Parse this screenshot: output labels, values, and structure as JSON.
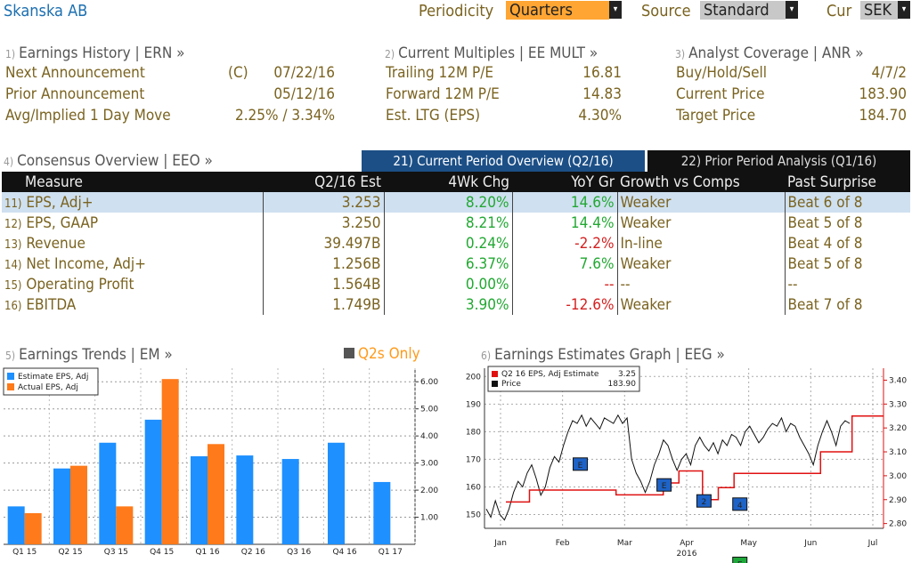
{
  "header": {
    "security": "Skanska AB",
    "periodicity_label": "Periodicity",
    "periodicity_value": "Quarters",
    "source_label": "Source",
    "source_value": "Standard",
    "currency_label": "Cur",
    "currency_value": "SEK"
  },
  "earnings_history": {
    "num": "1)",
    "title": "Earnings History | ERN »",
    "rows": [
      {
        "label": "Next Announcement",
        "flag": "(C)",
        "value": "07/22/16"
      },
      {
        "label": "Prior Announcement",
        "flag": "",
        "value": "05/12/16"
      },
      {
        "label": "Avg/Implied 1 Day Move",
        "flag": "",
        "value": "2.25% / 3.34%"
      }
    ]
  },
  "current_multiples": {
    "num": "2)",
    "title": "Current Multiples | EE MULT »",
    "rows": [
      {
        "label": "Trailing 12M P/E",
        "value": "16.81"
      },
      {
        "label": "Forward 12M P/E",
        "value": "14.83"
      },
      {
        "label": "Est. LTG (EPS)",
        "value": "4.30%"
      }
    ]
  },
  "analyst_coverage": {
    "num": "3)",
    "title": "Analyst Coverage | ANR »",
    "rows": [
      {
        "label": "Buy/Hold/Sell",
        "value": "4/7/2"
      },
      {
        "label": "Current Price",
        "value": "183.90"
      },
      {
        "label": "Target Price",
        "value": "184.70"
      }
    ]
  },
  "consensus": {
    "num": "4)",
    "title": "Consensus Overview | EEO »",
    "tab_current": "21) Current Period Overview (Q2/16)",
    "tab_prior": "22) Prior Period Analysis (Q1/16)",
    "columns": [
      "Measure",
      "Q2/16 Est",
      "4Wk Chg",
      "YoY Gr",
      "Growth vs Comps",
      "Past Surprise"
    ],
    "rows": [
      {
        "num": "11)",
        "measure": "EPS, Adj+",
        "est": "3.253",
        "chg": "8.20%",
        "yoy": "14.6%",
        "comps": "Weaker",
        "surprise": "Beat 6 of 8"
      },
      {
        "num": "12)",
        "measure": "EPS, GAAP",
        "est": "3.250",
        "chg": "8.21%",
        "yoy": "14.4%",
        "comps": "Weaker",
        "surprise": "Beat 5 of 8"
      },
      {
        "num": "13)",
        "measure": "Revenue",
        "est": "39.497B",
        "chg": "0.24%",
        "yoy": "-2.2%",
        "comps": "In-line",
        "surprise": "Beat 4 of 8"
      },
      {
        "num": "14)",
        "measure": "Net Income, Adj+",
        "est": "1.256B",
        "chg": "6.37%",
        "yoy": "7.6%",
        "comps": "Weaker",
        "surprise": "Beat 5 of 8"
      },
      {
        "num": "15)",
        "measure": "Operating Profit",
        "est": "1.564B",
        "chg": "0.00%",
        "yoy": "--",
        "comps": "--",
        "surprise": "--"
      },
      {
        "num": "16)",
        "measure": "EBITDA",
        "est": "1.749B",
        "chg": "3.90%",
        "yoy": "-12.6%",
        "comps": "Weaker",
        "surprise": "Beat 7 of 8"
      }
    ]
  },
  "trends": {
    "num": "5)",
    "title": "Earnings Trends | EM »",
    "toggle_label": "Q2s Only"
  },
  "graph": {
    "num": "6)",
    "title": "Earnings Estimates Graph | EEG »"
  },
  "chart_data": [
    {
      "type": "bar",
      "categories": [
        "Q1 15",
        "Q2 15",
        "Q3 15",
        "Q4 15",
        "Q1 16",
        "Q2 16",
        "Q3 16",
        "Q4 16",
        "Q1 17"
      ],
      "series": [
        {
          "name": "Estimate EPS, Adj",
          "color": "#1e90ff",
          "values": [
            1.4,
            2.8,
            3.75,
            4.6,
            3.25,
            3.28,
            3.15,
            3.75,
            2.3
          ]
        },
        {
          "name": "Actual EPS, Adj",
          "color": "#ff7a1a",
          "values": [
            1.15,
            2.9,
            1.4,
            6.1,
            3.7,
            null,
            null,
            null,
            null
          ]
        }
      ],
      "yticks": [
        "1.00",
        "2.00",
        "3.00",
        "4.00",
        "5.00",
        "6.00"
      ],
      "ylim": [
        0,
        6.5
      ]
    },
    {
      "type": "line",
      "legend": [
        {
          "name": "Q2 16 EPS, Adj Estimate",
          "value": "3.25",
          "color": "#e01010"
        },
        {
          "name": "Price",
          "value": "183.90",
          "color": "#111111"
        }
      ],
      "xticks": [
        "Jan",
        "Feb",
        "Mar",
        "Apr",
        "May",
        "Jun",
        "Jul"
      ],
      "xyear": "2016",
      "left_yticks": [
        "150",
        "160",
        "170",
        "180",
        "190",
        "200"
      ],
      "left_ylim": [
        145,
        203
      ],
      "right_yticks": [
        "2.80",
        "2.90",
        "3.00",
        "3.10",
        "3.20",
        "3.30",
        "3.40"
      ],
      "right_ylim": [
        2.78,
        3.45
      ],
      "price": [
        152,
        149,
        155,
        150,
        148,
        152,
        158,
        162,
        160,
        165,
        168,
        163,
        157,
        160,
        167,
        171,
        169,
        175,
        180,
        184,
        183,
        186,
        182,
        185,
        183,
        181,
        185,
        184,
        183,
        186,
        183,
        185,
        170,
        165,
        162,
        158,
        162,
        168,
        172,
        177,
        175,
        170,
        166,
        170,
        172,
        168,
        175,
        178,
        175,
        173,
        176,
        172,
        177,
        175,
        179,
        178,
        175,
        180,
        182,
        179,
        176,
        178,
        181,
        183,
        182,
        185,
        180,
        183,
        182,
        178,
        175,
        172,
        168,
        175,
        180,
        184,
        180,
        175,
        182,
        184,
        183
      ],
      "estimate": [
        2.89,
        2.89,
        2.89,
        2.94,
        2.94,
        2.94,
        2.94,
        2.94,
        2.94,
        2.94,
        2.94,
        2.94,
        2.94,
        2.94,
        2.92,
        2.92,
        2.92,
        2.92,
        2.92,
        2.92,
        2.97,
        2.97,
        3.02,
        3.02,
        3.02,
        2.9,
        2.9,
        2.95,
        2.95,
        3.01,
        3.01,
        3.01,
        3.01,
        3.01,
        3.01,
        3.01,
        3.01,
        3.01,
        3.01,
        3.01,
        3.1,
        3.1,
        3.1,
        3.1,
        3.25,
        3.25,
        3.25,
        3.25
      ],
      "markers": [
        {
          "label": "E",
          "color": "#1e63c7"
        },
        {
          "label": "E",
          "color": "#1e63c7"
        },
        {
          "label": "2",
          "color": "#1e63c7"
        },
        {
          "label": "4",
          "color": "#1e63c7"
        },
        {
          "label": "E",
          "color": "#1ea83a"
        }
      ]
    }
  ]
}
